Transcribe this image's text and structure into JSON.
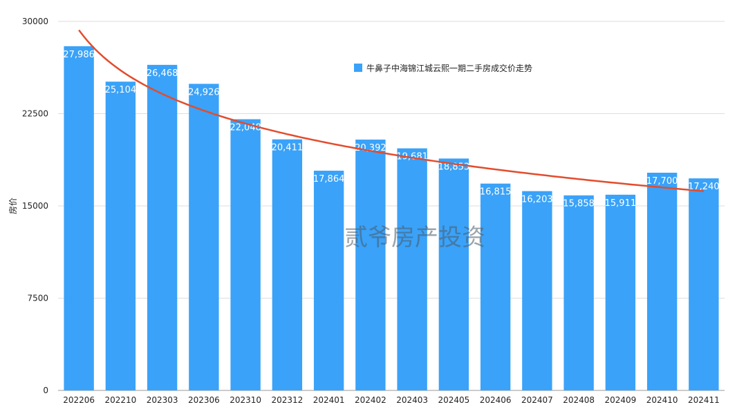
{
  "chart_data": {
    "type": "bar",
    "categories": [
      "202206",
      "202210",
      "202303",
      "202306",
      "202310",
      "202312",
      "202401",
      "202402",
      "202403",
      "202405",
      "202406",
      "202407",
      "202408",
      "202409",
      "202410",
      "202411"
    ],
    "series": [
      {
        "name": "牛鼻子中海锦江城云熙一期二手房成交价走势",
        "values": [
          27986,
          25104,
          26468,
          24926,
          22048,
          20411,
          17864,
          20392,
          19681,
          18853,
          16815,
          16203,
          15858,
          15911,
          17700,
          17240
        ],
        "data_labels": [
          "27,986",
          "25,104",
          "26,468",
          "24,926",
          "22,048",
          "20,411",
          "17,864",
          "20,392",
          "19,681",
          "18,853",
          "16,815",
          "16,203",
          "15,858",
          "15,911",
          "17,700",
          "17,240"
        ]
      }
    ],
    "trendline": {
      "type": "logarithmic",
      "color": "#e34c2d",
      "start_value": 29300,
      "end_value": 16200
    },
    "ylabel": "房价",
    "xlabel": "",
    "ylim": [
      0,
      30000
    ],
    "yticks": [
      "0",
      "7500",
      "15000",
      "22500",
      "30000"
    ],
    "ytick_values": [
      0,
      7500,
      15000,
      22500,
      30000
    ],
    "grid": true,
    "legend_position": "top-center",
    "bar_color": "#3aa2f8",
    "watermark": "贰爷房产投资"
  }
}
